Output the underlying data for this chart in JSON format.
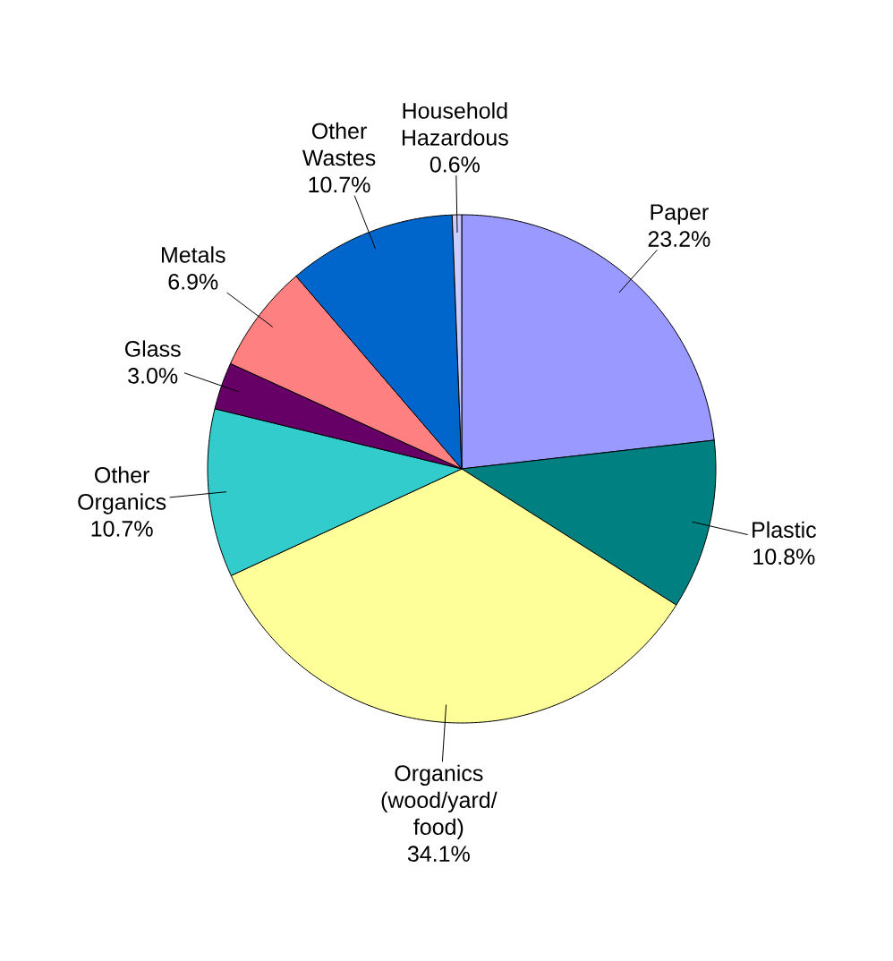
{
  "chart_data": {
    "type": "pie",
    "categories": [
      "Paper",
      "Plastic",
      "Organics (wood/yard/ food)",
      "Other Organics",
      "Glass",
      "Metals",
      "Other Wastes",
      "Household Hazardous"
    ],
    "values": [
      23.2,
      10.8,
      34.1,
      10.7,
      3.0,
      6.9,
      10.7,
      0.6
    ],
    "colors": [
      "#9999ff",
      "#008080",
      "#ffff99",
      "#33cccc",
      "#660066",
      "#ff8080",
      "#0066cc",
      "#ccccff"
    ],
    "value_labels": [
      "23.2%",
      "10.8%",
      "34.1%",
      "10.7%",
      "3.0%",
      "6.9%",
      "10.7%",
      "0.6%"
    ]
  }
}
